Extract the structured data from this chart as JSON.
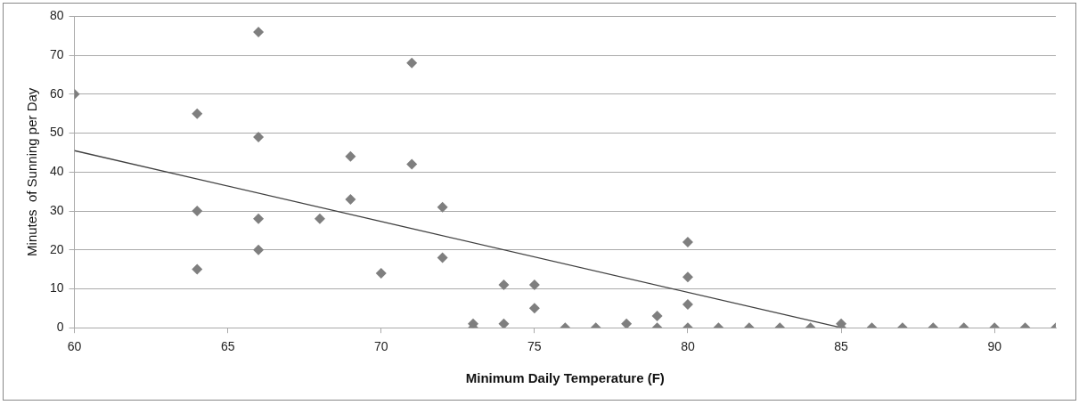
{
  "chart_data": {
    "type": "scatter",
    "xlabel": "Minimum Daily Temperature (F)",
    "ylabel": "Minutes  of Sunning per Day",
    "xlim": [
      60,
      92
    ],
    "xticks": [
      60,
      65,
      70,
      75,
      80,
      85,
      90
    ],
    "ylim": [
      0,
      80
    ],
    "yticks": [
      0,
      10,
      20,
      30,
      40,
      50,
      60,
      70,
      80
    ],
    "grid": "y",
    "legend": false,
    "marker": "diamond",
    "series": [
      {
        "color": "#7f7f7f",
        "x": [
          60,
          64,
          64,
          64,
          66,
          66,
          66,
          66,
          68,
          69,
          69,
          70,
          71,
          71,
          72,
          72,
          73,
          73,
          74,
          74,
          75,
          75,
          76,
          77,
          78,
          79,
          79,
          80,
          80,
          80,
          80,
          81,
          82,
          83,
          84,
          85,
          85,
          86,
          87,
          88,
          89,
          90,
          91,
          92
        ],
        "values": [
          60,
          55,
          30,
          15,
          76,
          49,
          28,
          20,
          28,
          44,
          33,
          14,
          68,
          42,
          31,
          18,
          1,
          0,
          11,
          1,
          11,
          5,
          0,
          0,
          1,
          3,
          0,
          22,
          13,
          6,
          0,
          0,
          0,
          0,
          0,
          1,
          0,
          0,
          0,
          0,
          0,
          0,
          0,
          0
        ]
      },
      {
        "type": "line",
        "color": "#404040",
        "marker": "none",
        "x": [
          60,
          85
        ],
        "values": [
          45.5,
          0
        ]
      }
    ]
  }
}
